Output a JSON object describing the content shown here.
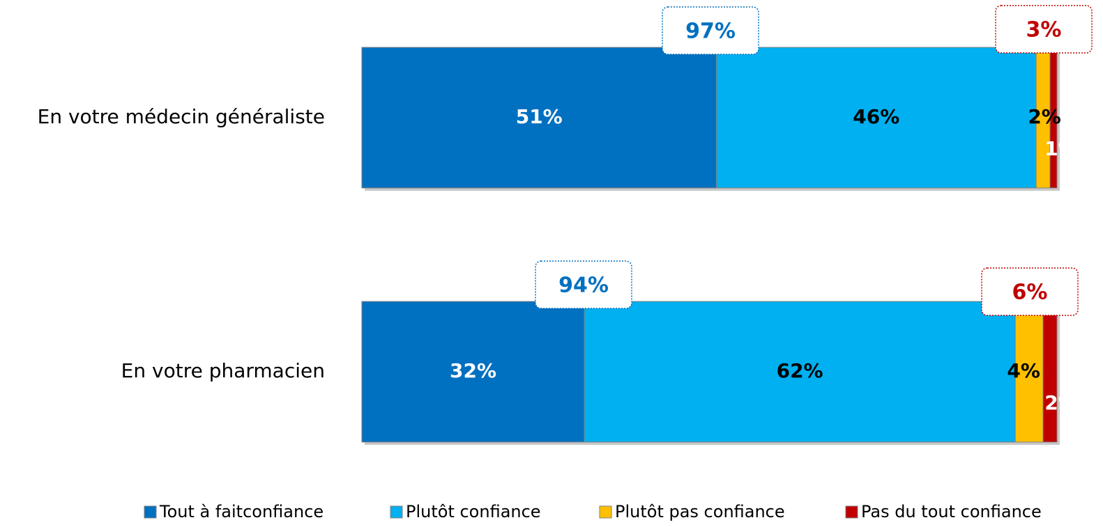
{
  "chart_data": {
    "type": "stacked_bar_horizontal",
    "categories": [
      "En votre médecin généraliste",
      "En votre pharmacien"
    ],
    "series": [
      {
        "name": "Tout à faitconfiance",
        "color": "#0070c0",
        "label_color": "#ffffff",
        "values": [
          51,
          32
        ],
        "value_labels": [
          "51%",
          "32%"
        ]
      },
      {
        "name": "Plutôt confiance",
        "color": "#00b0f0",
        "label_color": "#000000",
        "values": [
          46,
          62
        ],
        "value_labels": [
          "46%",
          "62%"
        ]
      },
      {
        "name": "Plutôt pas confiance",
        "color": "#ffc000",
        "label_color": "#000000",
        "values": [
          2,
          4
        ],
        "value_labels": [
          "2%",
          "4%"
        ]
      },
      {
        "name": "Pas du tout confiance",
        "color": "#c00000",
        "label_color": "#ffffff",
        "values": [
          1,
          2
        ],
        "value_labels": [
          "1%",
          "2%"
        ]
      }
    ],
    "positive_totals": {
      "color": "#0070c0",
      "values": [
        97,
        94
      ],
      "value_labels": [
        "97%",
        "94%"
      ]
    },
    "negative_totals": {
      "color": "#c00000",
      "values": [
        3,
        6
      ],
      "value_labels": [
        "3%",
        "6%"
      ]
    },
    "xlim": [
      0,
      100
    ],
    "legend": "bottom"
  }
}
